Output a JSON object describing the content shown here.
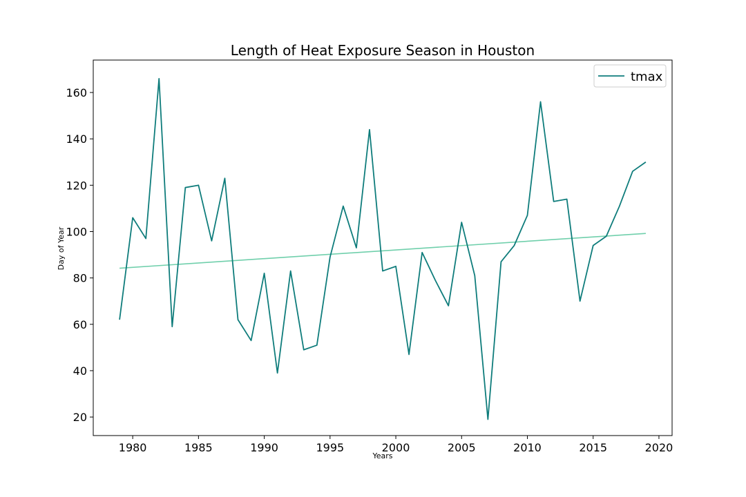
{
  "chart_data": {
    "type": "line",
    "title": "Length of Heat Exposure Season in Houston",
    "xlabel": "Years",
    "ylabel": "Day of Year",
    "xlim": [
      1977,
      2021
    ],
    "ylim": [
      12,
      174
    ],
    "xticks": [
      1980,
      1985,
      1990,
      1995,
      2000,
      2005,
      2010,
      2015,
      2020
    ],
    "yticks": [
      20,
      40,
      60,
      80,
      100,
      120,
      140,
      160
    ],
    "grid": false,
    "legend_position": "top-right",
    "series": [
      {
        "name": "tmax",
        "color": "#0e7c7b",
        "x": [
          1979,
          1980,
          1981,
          1982,
          1983,
          1984,
          1985,
          1986,
          1987,
          1988,
          1989,
          1990,
          1991,
          1992,
          1993,
          1994,
          1995,
          1996,
          1997,
          1998,
          1999,
          2000,
          2001,
          2002,
          2003,
          2004,
          2005,
          2006,
          2007,
          2008,
          2009,
          2010,
          2011,
          2012,
          2013,
          2014,
          2015,
          2016,
          2017,
          2018,
          2019
        ],
        "y": [
          62,
          106,
          97,
          166,
          59,
          119,
          120,
          96,
          123,
          62,
          53,
          82,
          39,
          83,
          49,
          51,
          89,
          111,
          93,
          144,
          83,
          85,
          47,
          91,
          79,
          68,
          104,
          81,
          19,
          87,
          94,
          107,
          156,
          113,
          114,
          70,
          94,
          98,
          111,
          126,
          130
        ]
      }
    ],
    "trend": {
      "color": "#6fcfab",
      "x": [
        1979,
        2019
      ],
      "y": [
        84.2,
        99.2
      ]
    }
  }
}
